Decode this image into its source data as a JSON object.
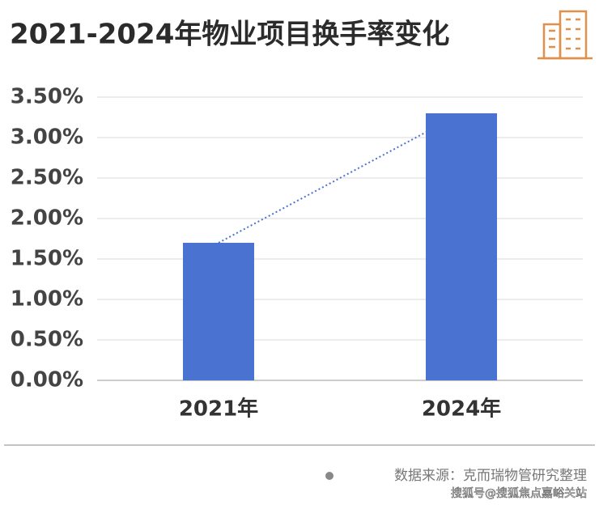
{
  "chart_data": {
    "type": "bar",
    "title": "2021-2024年物业项目换手率变化",
    "categories": [
      "2021年",
      "2024年"
    ],
    "values": [
      1.7,
      3.3
    ],
    "color": "#4a72d1",
    "ylim": [
      0,
      3.5
    ],
    "yticks": [
      {
        "value": 0,
        "label": "0.00%"
      },
      {
        "value": 0.5,
        "label": "0.50%"
      },
      {
        "value": 1,
        "label": "1.00%"
      },
      {
        "value": 1.5,
        "label": "1.50%"
      },
      {
        "value": 2,
        "label": "2.00%"
      },
      {
        "value": 2.5,
        "label": "2.50%"
      },
      {
        "value": 3,
        "label": "3.00%"
      },
      {
        "value": 3.5,
        "label": "3.50%"
      }
    ],
    "grid": true,
    "trendline": true,
    "trendline_color": "#4a72d1",
    "source": "数据来源：克而瑞物管研究整理",
    "watermark": "搜狐号@搜狐焦点嘉峪关站"
  }
}
